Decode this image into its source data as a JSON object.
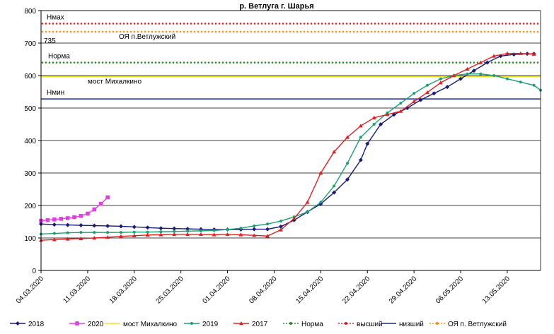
{
  "chart_data": {
    "type": "line",
    "title": "р. Ветлуга г. Шарья",
    "xlabel": "",
    "ylabel": "",
    "ylim": [
      0,
      800
    ],
    "yticks": [
      0,
      100,
      200,
      300,
      400,
      500,
      600,
      700,
      800
    ],
    "x_ticks": [
      "04.03.2020",
      "11.03.2020",
      "18.03.2020",
      "25.03.2020",
      "01.04.2020",
      "08.04.2020",
      "15.04.2020",
      "22.04.2020",
      "29.04.2020",
      "06.05.2020",
      "13.05.2020"
    ],
    "x_range": [
      "04.03",
      "18.05"
    ],
    "grid": "horizontal",
    "legend_position": "bottom",
    "reference_lines": [
      {
        "key": "hmax",
        "name": "высший",
        "value": 760,
        "color": "#dd2222",
        "style": "dotted",
        "label": "Нмах"
      },
      {
        "key": "ovl",
        "name": "ОЯ п. Ветлужский",
        "value": 735,
        "color": "#ff8c1a",
        "style": "dotted",
        "label": "ОЯ п.Ветлужский",
        "label2": "735"
      },
      {
        "key": "norm",
        "name": "Норма",
        "value": 640,
        "color": "#2e8b2e",
        "style": "dotted",
        "label": "Норма"
      },
      {
        "key": "most",
        "name": "мост Михалкино",
        "value": 597,
        "color": "#f0e020",
        "style": "solid",
        "label": "мост Михалкино"
      },
      {
        "key": "hmin",
        "name": "низший",
        "value": 528,
        "color": "#1a2a8c",
        "style": "solid",
        "label": "Нмин"
      }
    ],
    "series": [
      {
        "name": "2018",
        "color": "#1a1a7a",
        "marker": "diamond",
        "points": [
          [
            "04.03",
            143
          ],
          [
            "06.03",
            141
          ],
          [
            "08.03",
            140
          ],
          [
            "10.03",
            139
          ],
          [
            "12.03",
            138
          ],
          [
            "14.03",
            137
          ],
          [
            "16.03",
            136
          ],
          [
            "18.03",
            134
          ],
          [
            "20.03",
            132
          ],
          [
            "22.03",
            130
          ],
          [
            "24.03",
            129
          ],
          [
            "26.03",
            128
          ],
          [
            "28.03",
            127
          ],
          [
            "30.03",
            126
          ],
          [
            "01.04",
            126
          ],
          [
            "03.04",
            126
          ],
          [
            "05.04",
            127
          ],
          [
            "07.04",
            127
          ],
          [
            "09.04",
            135
          ],
          [
            "11.04",
            155
          ],
          [
            "13.04",
            180
          ],
          [
            "15.04",
            205
          ],
          [
            "17.04",
            240
          ],
          [
            "19.04",
            280
          ],
          [
            "21.04",
            340
          ],
          [
            "22.04",
            390
          ],
          [
            "24.04",
            450
          ],
          [
            "26.04",
            480
          ],
          [
            "28.04",
            500
          ],
          [
            "30.04",
            525
          ],
          [
            "02.05",
            545
          ],
          [
            "04.05",
            565
          ],
          [
            "06.05",
            590
          ],
          [
            "08.05",
            615
          ],
          [
            "10.05",
            640
          ],
          [
            "12.05",
            660
          ],
          [
            "14.05",
            665
          ],
          [
            "16.05",
            667
          ],
          [
            "17.05",
            667
          ]
        ]
      },
      {
        "name": "2020",
        "color": "#e040e0",
        "marker": "square",
        "points": [
          [
            "04.03",
            153
          ],
          [
            "05.03",
            155
          ],
          [
            "06.03",
            157
          ],
          [
            "07.03",
            159
          ],
          [
            "08.03",
            161
          ],
          [
            "09.03",
            164
          ],
          [
            "10.03",
            168
          ],
          [
            "11.03",
            175
          ],
          [
            "12.03",
            188
          ],
          [
            "13.03",
            205
          ],
          [
            "14.03",
            225
          ]
        ]
      },
      {
        "name": "2019",
        "color": "#1aa070",
        "marker": "dot",
        "points": [
          [
            "04.03",
            112
          ],
          [
            "06.03",
            114
          ],
          [
            "08.03",
            116
          ],
          [
            "10.03",
            117
          ],
          [
            "12.03",
            117
          ],
          [
            "14.03",
            117
          ],
          [
            "16.03",
            117
          ],
          [
            "18.03",
            118
          ],
          [
            "20.03",
            118
          ],
          [
            "22.03",
            119
          ],
          [
            "24.03",
            120
          ],
          [
            "26.03",
            121
          ],
          [
            "28.03",
            122
          ],
          [
            "30.03",
            123
          ],
          [
            "01.04",
            126
          ],
          [
            "03.04",
            130
          ],
          [
            "05.04",
            137
          ],
          [
            "07.04",
            143
          ],
          [
            "09.04",
            152
          ],
          [
            "11.04",
            165
          ],
          [
            "13.04",
            180
          ],
          [
            "15.04",
            210
          ],
          [
            "17.04",
            260
          ],
          [
            "19.04",
            330
          ],
          [
            "21.04",
            410
          ],
          [
            "23.04",
            450
          ],
          [
            "25.04",
            485
          ],
          [
            "27.04",
            515
          ],
          [
            "29.04",
            545
          ],
          [
            "01.05",
            570
          ],
          [
            "03.05",
            590
          ],
          [
            "05.05",
            600
          ],
          [
            "07.05",
            605
          ],
          [
            "09.05",
            605
          ],
          [
            "11.05",
            600
          ],
          [
            "13.05",
            590
          ],
          [
            "15.05",
            580
          ],
          [
            "17.05",
            570
          ],
          [
            "18.05",
            555
          ]
        ]
      },
      {
        "name": "2017",
        "color": "#e02020",
        "marker": "triangle",
        "points": [
          [
            "04.03",
            93
          ],
          [
            "06.03",
            95
          ],
          [
            "08.03",
            97
          ],
          [
            "10.03",
            98
          ],
          [
            "12.03",
            100
          ],
          [
            "14.03",
            102
          ],
          [
            "16.03",
            105
          ],
          [
            "18.03",
            107
          ],
          [
            "20.03",
            109
          ],
          [
            "22.03",
            110
          ],
          [
            "24.03",
            111
          ],
          [
            "26.03",
            111
          ],
          [
            "28.03",
            111
          ],
          [
            "30.03",
            110
          ],
          [
            "01.04",
            111
          ],
          [
            "03.04",
            110
          ],
          [
            "05.04",
            108
          ],
          [
            "07.04",
            106
          ],
          [
            "09.04",
            125
          ],
          [
            "11.04",
            160
          ],
          [
            "13.04",
            210
          ],
          [
            "15.04",
            300
          ],
          [
            "17.04",
            365
          ],
          [
            "19.04",
            410
          ],
          [
            "21.04",
            445
          ],
          [
            "23.04",
            470
          ],
          [
            "25.04",
            480
          ],
          [
            "27.04",
            490
          ],
          [
            "29.04",
            520
          ],
          [
            "01.05",
            548
          ],
          [
            "03.05",
            578
          ],
          [
            "05.05",
            600
          ],
          [
            "07.05",
            620
          ],
          [
            "09.05",
            640
          ],
          [
            "11.05",
            660
          ],
          [
            "13.05",
            668
          ],
          [
            "15.05",
            668
          ],
          [
            "17.05",
            666
          ]
        ]
      }
    ],
    "legend": [
      "2018",
      "2020",
      "мост Михалкино",
      "2019",
      "2017",
      "Норма",
      "высший",
      "низший",
      "ОЯ п. Ветлужский"
    ]
  }
}
